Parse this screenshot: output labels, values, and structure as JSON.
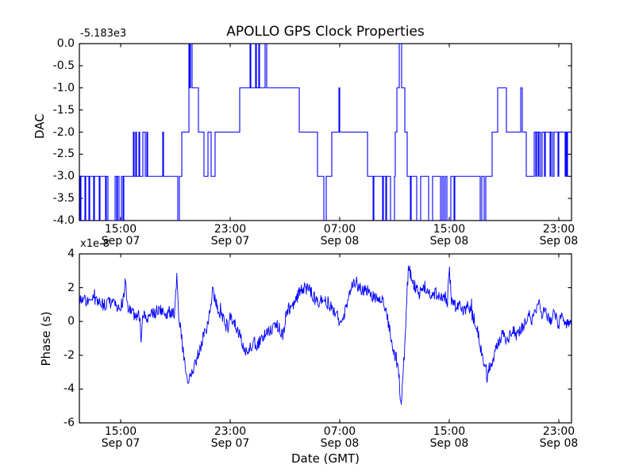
{
  "figure": {
    "title": "APOLLO GPS Clock Properties",
    "background": "#ffffff",
    "line_color": "#0000ff",
    "axis_color": "#000000",
    "xlabel": "Date (GMT)"
  },
  "top_plot": {
    "ylabel": "DAC",
    "offset_label": "-5.183e3",
    "ytick_labels": [
      "0.0",
      "-0.5",
      "-1.0",
      "-1.5",
      "-2.0",
      "-2.5",
      "-3.0",
      "-3.5",
      "-4.0"
    ],
    "ylim": [
      -4,
      0
    ]
  },
  "bottom_plot": {
    "ylabel": "Phase (s)",
    "multiplier_label": "x1e-8",
    "ytick_labels": [
      "4",
      "2",
      "0",
      "-2",
      "-4",
      "-6"
    ],
    "ylim": [
      -6,
      4
    ]
  },
  "xticks": [
    {
      "f": 0.0839,
      "time": "15:00",
      "date": "Sep 07"
    },
    {
      "f": 0.3065,
      "time": "23:00",
      "date": "Sep 07"
    },
    {
      "f": 0.529,
      "time": "07:00",
      "date": "Sep 08"
    },
    {
      "f": 0.7516,
      "time": "15:00",
      "date": "Sep 08"
    },
    {
      "f": 0.9742,
      "time": "23:00",
      "date": "Sep 08"
    }
  ],
  "chart_data": [
    {
      "type": "line",
      "subtype": "step",
      "title": "APOLLO GPS Clock Properties",
      "ylabel": "DAC",
      "y_offset_text": "-5.183e3",
      "ylim": [
        -4,
        0
      ],
      "x_unit": "fraction of x-axis (approx Sep 07 12:00 GMT to Sep 09 00:00 GMT)",
      "xtick_labels": [
        "15:00 Sep 07",
        "23:00 Sep 07",
        "07:00 Sep 08",
        "15:00 Sep 08",
        "23:00 Sep 08"
      ],
      "legend": "none",
      "grid": false,
      "points": [
        [
          0.0,
          -3
        ],
        [
          0.0016,
          -4
        ],
        [
          0.0032,
          -3
        ],
        [
          0.0113,
          -4
        ],
        [
          0.0129,
          -3
        ],
        [
          0.0194,
          -4
        ],
        [
          0.021,
          -3
        ],
        [
          0.029,
          -4
        ],
        [
          0.0306,
          -3
        ],
        [
          0.0403,
          -4
        ],
        [
          0.0419,
          -3
        ],
        [
          0.0532,
          -4
        ],
        [
          0.0548,
          -3
        ],
        [
          0.0581,
          -4
        ],
        [
          0.0726,
          -3
        ],
        [
          0.0758,
          -4
        ],
        [
          0.0774,
          -3
        ],
        [
          0.0806,
          -4
        ],
        [
          0.0855,
          -3
        ],
        [
          0.0887,
          -4
        ],
        [
          0.0903,
          -3
        ],
        [
          0.1097,
          -2
        ],
        [
          0.1113,
          -3
        ],
        [
          0.1145,
          -2
        ],
        [
          0.1161,
          -3
        ],
        [
          0.121,
          -2
        ],
        [
          0.1226,
          -3
        ],
        [
          0.129,
          -2
        ],
        [
          0.1339,
          -3
        ],
        [
          0.1371,
          -2
        ],
        [
          0.1387,
          -3
        ],
        [
          0.1694,
          -2
        ],
        [
          0.171,
          -3
        ],
        [
          0.2,
          -4
        ],
        [
          0.2032,
          -3
        ],
        [
          0.2081,
          -2
        ],
        [
          0.2226,
          0
        ],
        [
          0.2242,
          -1
        ],
        [
          0.2258,
          0
        ],
        [
          0.229,
          -1
        ],
        [
          0.2419,
          -2
        ],
        [
          0.2532,
          -3
        ],
        [
          0.2613,
          -2
        ],
        [
          0.2677,
          -3
        ],
        [
          0.2758,
          -2
        ],
        [
          0.3258,
          -1
        ],
        [
          0.3468,
          0
        ],
        [
          0.3484,
          -1
        ],
        [
          0.3581,
          0
        ],
        [
          0.3597,
          -1
        ],
        [
          0.3645,
          0
        ],
        [
          0.3661,
          -1
        ],
        [
          0.3774,
          0
        ],
        [
          0.3806,
          -1
        ],
        [
          0.4468,
          -2
        ],
        [
          0.4839,
          -3
        ],
        [
          0.4968,
          -4
        ],
        [
          0.5016,
          -3
        ],
        [
          0.5129,
          -2
        ],
        [
          0.5274,
          -1
        ],
        [
          0.529,
          -2
        ],
        [
          0.5855,
          -3
        ],
        [
          0.5968,
          -4
        ],
        [
          0.5984,
          -3
        ],
        [
          0.6161,
          -4
        ],
        [
          0.6177,
          -3
        ],
        [
          0.6226,
          -4
        ],
        [
          0.6242,
          -3
        ],
        [
          0.6323,
          -4
        ],
        [
          0.6403,
          -3
        ],
        [
          0.6419,
          -2
        ],
        [
          0.6452,
          -1
        ],
        [
          0.65,
          0
        ],
        [
          0.6548,
          -1
        ],
        [
          0.6613,
          -2
        ],
        [
          0.6661,
          -3
        ],
        [
          0.6726,
          -4
        ],
        [
          0.6742,
          -3
        ],
        [
          0.6855,
          -4
        ],
        [
          0.6935,
          -3
        ],
        [
          0.7097,
          -4
        ],
        [
          0.7177,
          -3
        ],
        [
          0.7339,
          -4
        ],
        [
          0.7371,
          -3
        ],
        [
          0.7403,
          -4
        ],
        [
          0.7435,
          -3
        ],
        [
          0.7468,
          -4
        ],
        [
          0.7548,
          -3
        ],
        [
          0.7613,
          -4
        ],
        [
          0.7629,
          -3
        ],
        [
          0.8145,
          -4
        ],
        [
          0.8177,
          -3
        ],
        [
          0.8226,
          -4
        ],
        [
          0.8258,
          -3
        ],
        [
          0.8387,
          -2
        ],
        [
          0.85,
          -1
        ],
        [
          0.8677,
          -2
        ],
        [
          0.8968,
          -1
        ],
        [
          0.9,
          -2
        ],
        [
          0.9081,
          -3
        ],
        [
          0.9242,
          -2
        ],
        [
          0.9274,
          -3
        ],
        [
          0.929,
          -2
        ],
        [
          0.9323,
          -3
        ],
        [
          0.9339,
          -2
        ],
        [
          0.9371,
          -3
        ],
        [
          0.9403,
          -2
        ],
        [
          0.9452,
          -3
        ],
        [
          0.9468,
          -2
        ],
        [
          0.9565,
          -3
        ],
        [
          0.9581,
          -2
        ],
        [
          0.9613,
          -3
        ],
        [
          0.9645,
          -2
        ],
        [
          0.9726,
          -3
        ],
        [
          0.9742,
          -2
        ],
        [
          0.9871,
          -3
        ],
        [
          0.9887,
          -2
        ],
        [
          0.9903,
          -3
        ],
        [
          0.9919,
          -2
        ],
        [
          1.0,
          -2
        ]
      ]
    },
    {
      "type": "line",
      "ylabel": "Phase (s)",
      "y_scale_text": "x1e-8",
      "ylim": [
        -6,
        4
      ],
      "xlabel": "Date (GMT)",
      "x_unit": "fraction of x-axis (approx Sep 07 12:00 GMT to Sep 09 00:00 GMT)",
      "xtick_labels": [
        "15:00 Sep 07",
        "23:00 Sep 07",
        "07:00 Sep 08",
        "15:00 Sep 08",
        "23:00 Sep 08"
      ],
      "legend": "none",
      "grid": false,
      "noise_amplitude": 0.38,
      "noise_seed": 9,
      "keyframes": [
        [
          0.0,
          1.4
        ],
        [
          0.016,
          1.2
        ],
        [
          0.032,
          1.3
        ],
        [
          0.048,
          1.0
        ],
        [
          0.065,
          1.1
        ],
        [
          0.081,
          0.9
        ],
        [
          0.089,
          1.1
        ],
        [
          0.0935,
          2.6
        ],
        [
          0.097,
          0.9
        ],
        [
          0.105,
          0.5
        ],
        [
          0.113,
          0.4
        ],
        [
          0.123,
          0.35
        ],
        [
          0.126,
          -1.4
        ],
        [
          0.129,
          0.4
        ],
        [
          0.139,
          0.2
        ],
        [
          0.148,
          0.5
        ],
        [
          0.161,
          0.6
        ],
        [
          0.174,
          0.4
        ],
        [
          0.184,
          0.6
        ],
        [
          0.194,
          0.4
        ],
        [
          0.198,
          2.6
        ],
        [
          0.202,
          0.3
        ],
        [
          0.206,
          -0.6
        ],
        [
          0.213,
          -2.2
        ],
        [
          0.219,
          -3.3
        ],
        [
          0.224,
          -3.4
        ],
        [
          0.231,
          -2.9
        ],
        [
          0.239,
          -2.2
        ],
        [
          0.248,
          -1.3
        ],
        [
          0.258,
          -0.5
        ],
        [
          0.266,
          0.7
        ],
        [
          0.271,
          1.9
        ],
        [
          0.277,
          1.1
        ],
        [
          0.284,
          0.6
        ],
        [
          0.292,
          0.1
        ],
        [
          0.3,
          -0.3
        ],
        [
          0.306,
          0.2
        ],
        [
          0.315,
          -0.1
        ],
        [
          0.323,
          -0.6
        ],
        [
          0.331,
          -1.3
        ],
        [
          0.339,
          -1.8
        ],
        [
          0.347,
          -1.5
        ],
        [
          0.355,
          -1.2
        ],
        [
          0.363,
          -1.4
        ],
        [
          0.371,
          -1.0
        ],
        [
          0.381,
          -0.6
        ],
        [
          0.39,
          -0.4
        ],
        [
          0.4,
          -0.2
        ],
        [
          0.406,
          -0.4
        ],
        [
          0.4145,
          -0.9
        ],
        [
          0.421,
          0.8
        ],
        [
          0.427,
          0.6
        ],
        [
          0.439,
          1.2
        ],
        [
          0.448,
          1.8
        ],
        [
          0.458,
          2.0
        ],
        [
          0.468,
          1.9
        ],
        [
          0.477,
          1.4
        ],
        [
          0.487,
          1.1
        ],
        [
          0.497,
          1.3
        ],
        [
          0.506,
          1.0
        ],
        [
          0.516,
          0.7
        ],
        [
          0.526,
          0.2
        ],
        [
          0.532,
          -0.2
        ],
        [
          0.539,
          0.4
        ],
        [
          0.545,
          1.2
        ],
        [
          0.553,
          2.1
        ],
        [
          0.561,
          2.4
        ],
        [
          0.569,
          2.0
        ],
        [
          0.577,
          1.7
        ],
        [
          0.585,
          1.9
        ],
        [
          0.594,
          1.5
        ],
        [
          0.603,
          1.3
        ],
        [
          0.613,
          1.4
        ],
        [
          0.623,
          0.8
        ],
        [
          0.631,
          -0.6
        ],
        [
          0.639,
          -1.7
        ],
        [
          0.645,
          -2.3
        ],
        [
          0.65,
          -3.3
        ],
        [
          0.653,
          -5.0
        ],
        [
          0.656,
          -4.0
        ],
        [
          0.661,
          -1.6
        ],
        [
          0.666,
          1.8
        ],
        [
          0.669,
          3.3
        ],
        [
          0.674,
          2.7
        ],
        [
          0.682,
          2.1
        ],
        [
          0.69,
          1.6
        ],
        [
          0.698,
          1.9
        ],
        [
          0.706,
          2.0
        ],
        [
          0.715,
          1.5
        ],
        [
          0.724,
          1.7
        ],
        [
          0.732,
          1.3
        ],
        [
          0.742,
          1.5
        ],
        [
          0.748,
          1.2
        ],
        [
          0.7515,
          3.2
        ],
        [
          0.756,
          1.3
        ],
        [
          0.765,
          0.9
        ],
        [
          0.774,
          1.1
        ],
        [
          0.782,
          0.6
        ],
        [
          0.79,
          0.9
        ],
        [
          0.798,
          0.4
        ],
        [
          0.806,
          -0.1
        ],
        [
          0.813,
          -1.2
        ],
        [
          0.819,
          -2.1
        ],
        [
          0.826,
          -2.7
        ],
        [
          0.829,
          -3.5
        ],
        [
          0.834,
          -2.5
        ],
        [
          0.839,
          -2.6
        ],
        [
          0.845,
          -1.7
        ],
        [
          0.853,
          -1.1
        ],
        [
          0.861,
          -0.8
        ],
        [
          0.869,
          -1.1
        ],
        [
          0.879,
          -0.5
        ],
        [
          0.887,
          -0.8
        ],
        [
          0.897,
          -0.4
        ],
        [
          0.905,
          -0.1
        ],
        [
          0.913,
          0.4
        ],
        [
          0.921,
          0.1
        ],
        [
          0.929,
          0.6
        ],
        [
          0.935,
          1.4
        ],
        [
          0.94,
          0.4
        ],
        [
          0.948,
          0.6
        ],
        [
          0.956,
          0.0
        ],
        [
          0.965,
          0.4
        ],
        [
          0.973,
          -0.2
        ],
        [
          0.981,
          0.2
        ],
        [
          0.989,
          -0.3
        ],
        [
          0.995,
          0.1
        ],
        [
          1.0,
          -0.2
        ]
      ]
    }
  ]
}
